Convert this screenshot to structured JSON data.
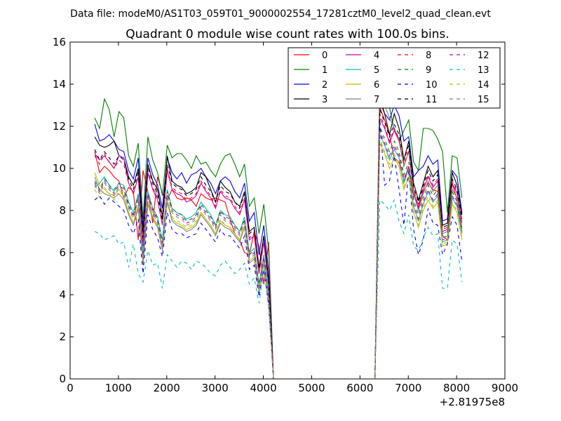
{
  "figure": {
    "suptitle": "Data file: modeM0/AS1T03_059T01_9000002554_17281cztM0_level2_quad_clean.evt"
  },
  "chart_data": {
    "type": "line",
    "title": "Quadrant 0 module wise count rates with 100.0s bins.",
    "xlabel": "",
    "ylabel": "",
    "x_offset_label": "+2.81975e8",
    "xlim": [
      0,
      9000
    ],
    "ylim": [
      0,
      16
    ],
    "xticks": [
      0,
      1000,
      2000,
      3000,
      4000,
      5000,
      6000,
      7000,
      8000,
      9000
    ],
    "yticks": [
      0,
      2,
      4,
      6,
      8,
      10,
      12,
      14,
      16
    ],
    "grid": false,
    "legend_position": "upper-right",
    "legend_columns": 4,
    "x_segments": [
      {
        "start": 510,
        "end": 4210,
        "step": 100
      },
      {
        "start": 4210,
        "end": 6310,
        "step": 100
      },
      {
        "start": 6410,
        "end": 8110,
        "step": 100
      }
    ],
    "series": [
      {
        "name": "0",
        "color": "#ff0000",
        "dash": "solid",
        "base": 8.6,
        "pre": [
          10.8,
          9.8,
          10.1,
          9.9,
          9.6,
          9.4,
          8.6,
          9.1,
          8.9,
          6.6,
          9.9,
          8.9,
          7.4,
          9.6,
          8.8,
          8.5,
          9.0,
          8.6,
          8.5,
          8.6,
          8.5,
          8.2,
          8.8,
          8.6,
          8.5,
          8.6,
          8.5,
          8.4,
          7.6,
          6.9,
          6.6,
          6.0,
          5.9,
          7.0,
          6.3,
          4.5,
          6.5
        ],
        "post": [
          12.9,
          12.3,
          11.6,
          10.5,
          10.3,
          9.4,
          10.1,
          8.7,
          8.3,
          8.9,
          9.3,
          9.0,
          8.9,
          6.8,
          6.6,
          9.3,
          8.5,
          7.6
        ]
      },
      {
        "name": "1",
        "color": "#008000",
        "dash": "solid",
        "base": 10.5,
        "pre": [
          12.4,
          11.9,
          13.3,
          12.8,
          11.5,
          12.7,
          12.4,
          10.6,
          10.1,
          11.2,
          7.6,
          11.5,
          10.4,
          9.8,
          8.7,
          11.1,
          10.5,
          10.7,
          10.7,
          10.4,
          10.0,
          10.6,
          10.2,
          10.3,
          9.9,
          9.6,
          10.2,
          10.6,
          10.7,
          10.2,
          9.6,
          10.2,
          8.2,
          8.6,
          6.9,
          8.3,
          6.1
        ],
        "post": [
          14.2,
          13.5,
          12.9,
          11.8,
          11.3,
          11.8,
          12.3,
          10.3,
          9.9,
          11.9,
          11.9,
          11.8,
          11.4,
          10.8,
          7.9,
          10.6,
          10.5,
          8.6
        ]
      },
      {
        "name": "2",
        "color": "#0000ff",
        "dash": "solid",
        "base": 9.6,
        "pre": [
          12.1,
          11.3,
          11.4,
          11.6,
          11.3,
          10.9,
          10.8,
          9.9,
          9.5,
          10.5,
          7.2,
          10.5,
          9.7,
          9.2,
          8.1,
          10.5,
          9.8,
          9.5,
          9.8,
          9.3,
          9.7,
          9.8,
          10.0,
          9.6,
          9.3,
          8.8,
          9.4,
          9.6,
          9.4,
          8.9,
          8.6,
          9.3,
          7.5,
          7.9,
          5.9,
          7.3,
          5.1
        ],
        "post": [
          13.4,
          12.6,
          12.3,
          13.0,
          12.5,
          11.3,
          11.5,
          9.6,
          9.9,
          10.1,
          10.6,
          10.2,
          10.4,
          7.5,
          7.6,
          9.9,
          9.6,
          7.9
        ]
      },
      {
        "name": "3",
        "color": "#000000",
        "dash": "solid",
        "base": 9.5,
        "pre": [
          11.5,
          11.1,
          11.0,
          11.1,
          11.3,
          10.6,
          10.5,
          9.6,
          9.2,
          10.0,
          7.0,
          10.2,
          9.4,
          9.0,
          7.7,
          10.6,
          9.4,
          9.2,
          9.1,
          8.8,
          8.9,
          9.1,
          9.8,
          9.6,
          9.0,
          8.4,
          9.4,
          9.1,
          8.9,
          8.4,
          8.2,
          8.9,
          7.0,
          7.2,
          5.3,
          6.8,
          4.7
        ],
        "post": [
          13.2,
          12.6,
          11.6,
          12.6,
          11.9,
          10.4,
          11.3,
          9.3,
          8.5,
          9.3,
          10.1,
          9.6,
          9.9,
          7.3,
          7.4,
          9.8,
          9.2,
          7.8
        ]
      },
      {
        "name": "4",
        "color": "#bf00bf",
        "dash": "solid",
        "base": 9.1,
        "pre": [
          10.7,
          10.4,
          10.6,
          10.3,
          10.0,
          10.6,
          10.5,
          9.3,
          8.8,
          9.6,
          6.3,
          9.8,
          9.0,
          8.5,
          7.3,
          9.9,
          9.0,
          8.8,
          8.7,
          8.4,
          8.5,
          8.7,
          9.3,
          8.9,
          8.6,
          8.1,
          8.9,
          8.6,
          8.5,
          8.1,
          7.8,
          8.5,
          6.6,
          6.8,
          5.0,
          6.5,
          4.4
        ],
        "post": [
          12.4,
          11.9,
          11.2,
          11.8,
          11.3,
          10.1,
          10.8,
          8.9,
          8.1,
          9.0,
          9.6,
          9.1,
          9.4,
          7.0,
          7.1,
          9.3,
          8.8,
          7.4
        ]
      },
      {
        "name": "5",
        "color": "#00bfbf",
        "dash": "solid",
        "base": 8.2,
        "pre": [
          9.1,
          9.3,
          9.6,
          9.2,
          8.9,
          9.3,
          9.2,
          8.4,
          7.9,
          8.8,
          5.9,
          8.9,
          8.1,
          7.7,
          6.6,
          9.0,
          8.1,
          7.9,
          7.8,
          7.6,
          7.7,
          7.9,
          8.4,
          8.1,
          7.8,
          7.3,
          8.0,
          7.8,
          7.7,
          7.3,
          7.0,
          7.7,
          6.0,
          6.2,
          4.5,
          5.9,
          4.0
        ],
        "post": [
          11.6,
          11.1,
          10.4,
          10.9,
          10.5,
          9.3,
          10.0,
          8.2,
          7.5,
          8.3,
          8.9,
          8.4,
          8.7,
          6.5,
          6.6,
          8.6,
          8.2,
          6.9
        ]
      },
      {
        "name": "6",
        "color": "#bfbf00",
        "dash": "solid",
        "base": 7.8,
        "pre": [
          9.8,
          9.2,
          9.0,
          8.8,
          8.7,
          9.0,
          8.7,
          7.9,
          7.4,
          8.2,
          5.5,
          8.4,
          7.7,
          7.3,
          6.2,
          8.5,
          7.6,
          7.4,
          7.3,
          7.1,
          7.2,
          7.4,
          7.9,
          7.6,
          7.3,
          6.9,
          7.5,
          7.3,
          7.2,
          6.9,
          6.6,
          7.3,
          5.6,
          5.8,
          4.2,
          5.6,
          3.8
        ],
        "post": [
          11.2,
          10.7,
          10.0,
          10.5,
          10.1,
          9.0,
          9.6,
          7.9,
          7.2,
          8.0,
          8.5,
          8.1,
          8.4,
          6.3,
          6.4,
          8.3,
          7.9,
          6.6
        ]
      },
      {
        "name": "7",
        "color": "#808080",
        "dash": "solid",
        "base": 8.0,
        "pre": [
          9.6,
          9.0,
          8.8,
          8.7,
          8.6,
          8.8,
          8.5,
          7.8,
          7.3,
          8.1,
          5.4,
          8.3,
          7.6,
          7.2,
          6.1,
          8.4,
          7.5,
          7.3,
          7.2,
          7.0,
          7.1,
          7.3,
          7.8,
          7.5,
          7.2,
          6.8,
          7.4,
          7.2,
          7.1,
          6.8,
          6.5,
          7.2,
          5.5,
          5.7,
          4.1,
          5.5,
          3.7
        ],
        "post": [
          13.7,
          13.0,
          12.4,
          11.9,
          11.4,
          10.1,
          10.8,
          8.8,
          8.0,
          8.8,
          9.4,
          8.9,
          9.2,
          6.9,
          7.0,
          9.0,
          8.6,
          7.2
        ]
      },
      {
        "name": "8",
        "color": "#ff0000",
        "dash": "dashed",
        "base": 9.2,
        "pre": [
          10.6,
          10.2,
          10.7,
          10.3,
          10.0,
          10.4,
          10.2,
          9.3,
          8.8,
          9.7,
          6.6,
          9.9,
          9.1,
          8.6,
          7.4,
          10.0,
          9.1,
          8.9,
          8.8,
          8.5,
          8.6,
          8.8,
          9.4,
          9.0,
          8.7,
          8.2,
          9.0,
          8.7,
          8.6,
          8.2,
          7.9,
          8.6,
          6.7,
          6.9,
          5.1,
          6.6,
          4.5
        ],
        "post": [
          12.6,
          12.0,
          11.3,
          11.9,
          11.4,
          10.2,
          10.9,
          9.0,
          8.2,
          9.1,
          9.7,
          9.2,
          9.5,
          7.1,
          7.2,
          9.4,
          8.9,
          7.5
        ]
      },
      {
        "name": "9",
        "color": "#008000",
        "dash": "dashed",
        "base": 8.6,
        "pre": [
          9.4,
          9.0,
          9.5,
          9.2,
          9.0,
          9.3,
          9.1,
          8.3,
          7.8,
          8.7,
          5.8,
          8.8,
          8.1,
          7.6,
          6.5,
          8.9,
          8.1,
          7.9,
          7.8,
          7.5,
          7.6,
          7.8,
          8.3,
          8.0,
          7.7,
          7.3,
          8.0,
          7.7,
          7.6,
          7.3,
          7.0,
          7.6,
          5.9,
          6.1,
          4.5,
          5.8,
          4.0
        ],
        "post": [
          12.0,
          11.4,
          10.8,
          11.3,
          10.8,
          9.7,
          10.3,
          8.5,
          7.8,
          8.6,
          9.2,
          8.7,
          9.0,
          6.7,
          6.8,
          8.9,
          8.4,
          7.1
        ]
      },
      {
        "name": "10",
        "color": "#0000ff",
        "dash": "dashed",
        "base": 7.9,
        "pre": [
          8.5,
          8.7,
          8.3,
          8.6,
          8.4,
          8.2,
          8.0,
          7.3,
          6.9,
          7.6,
          5.0,
          7.8,
          7.1,
          6.7,
          5.8,
          7.9,
          7.1,
          6.9,
          6.9,
          6.7,
          6.8,
          6.9,
          7.4,
          7.1,
          6.8,
          6.5,
          7.1,
          6.8,
          6.8,
          6.5,
          6.2,
          6.8,
          5.2,
          5.4,
          3.9,
          5.2,
          3.5
        ],
        "post": [
          12.3,
          9.2,
          9.4,
          10.6,
          9.0,
          7.3,
          9.9,
          7.1,
          5.9,
          6.6,
          8.1,
          7.4,
          7.3,
          5.9,
          6.4,
          7.7,
          7.3,
          5.6
        ]
      },
      {
        "name": "11",
        "color": "#000000",
        "dash": "dashed",
        "base": 9.0,
        "pre": [
          10.9,
          10.4,
          10.8,
          10.5,
          10.2,
          10.6,
          10.4,
          9.5,
          9.0,
          9.9,
          6.7,
          10.1,
          9.3,
          8.8,
          7.5,
          10.2,
          9.3,
          9.1,
          9.0,
          8.7,
          8.8,
          9.0,
          9.6,
          9.2,
          8.9,
          8.4,
          9.2,
          8.9,
          8.8,
          8.4,
          8.1,
          8.8,
          6.9,
          7.1,
          5.2,
          6.8,
          4.6
        ],
        "post": [
          12.8,
          12.2,
          11.5,
          12.1,
          11.6,
          10.4,
          11.1,
          9.1,
          8.4,
          9.2,
          9.9,
          9.4,
          9.7,
          7.2,
          7.3,
          9.5,
          9.0,
          7.6
        ]
      },
      {
        "name": "12",
        "color": "#bf00bf",
        "dash": "dashed",
        "base": 8.4,
        "pre": [
          9.3,
          8.9,
          9.4,
          9.1,
          8.8,
          9.2,
          9.0,
          8.2,
          7.7,
          8.6,
          5.7,
          8.7,
          8.0,
          7.5,
          6.4,
          8.8,
          8.0,
          7.8,
          7.7,
          7.4,
          7.5,
          7.7,
          8.2,
          7.9,
          7.6,
          7.2,
          7.9,
          7.6,
          7.5,
          7.2,
          6.9,
          7.5,
          5.8,
          6.0,
          4.4,
          5.7,
          3.9
        ],
        "post": [
          11.8,
          11.2,
          10.6,
          11.1,
          10.6,
          9.5,
          10.1,
          8.3,
          7.6,
          8.4,
          9.0,
          8.5,
          8.8,
          6.6,
          6.7,
          8.7,
          8.3,
          7.0
        ]
      },
      {
        "name": "13",
        "color": "#00bfbf",
        "dash": "dashed",
        "base": 6.3,
        "pre": [
          7.0,
          6.9,
          6.6,
          6.7,
          6.8,
          6.4,
          6.5,
          5.3,
          6.4,
          5.0,
          4.6,
          6.1,
          5.4,
          5.5,
          4.3,
          5.9,
          5.6,
          5.3,
          5.6,
          5.5,
          5.2,
          5.6,
          5.5,
          5.3,
          5.0,
          4.9,
          5.4,
          5.6,
          5.3,
          5.0,
          5.2,
          5.5,
          4.5,
          4.8,
          3.6,
          5.2,
          3.4
        ],
        "post": [
          8.5,
          8.3,
          8.0,
          8.5,
          7.5,
          6.9,
          7.8,
          6.3,
          6.1,
          6.7,
          7.2,
          6.8,
          6.9,
          4.3,
          4.3,
          6.6,
          6.4,
          4.6
        ]
      },
      {
        "name": "14",
        "color": "#bfbf00",
        "dash": "dashed",
        "base": 8.0,
        "pre": [
          9.0,
          8.6,
          9.1,
          8.8,
          8.5,
          8.9,
          8.7,
          7.9,
          7.4,
          8.3,
          5.5,
          8.4,
          7.7,
          7.3,
          6.2,
          8.5,
          7.7,
          7.5,
          7.4,
          7.2,
          7.3,
          7.5,
          7.9,
          7.6,
          7.3,
          6.9,
          7.6,
          7.3,
          7.2,
          6.9,
          6.6,
          7.2,
          5.6,
          5.8,
          4.2,
          5.5,
          3.8
        ],
        "post": [
          11.4,
          10.8,
          10.2,
          10.7,
          10.2,
          9.1,
          9.7,
          8.0,
          7.3,
          8.1,
          8.7,
          8.2,
          8.5,
          6.4,
          6.5,
          8.4,
          8.0,
          6.7
        ]
      },
      {
        "name": "15",
        "color": "#808080",
        "dash": "dashed",
        "base": 8.3,
        "pre": [
          9.2,
          8.8,
          9.3,
          9.0,
          8.7,
          9.1,
          8.9,
          8.1,
          7.6,
          8.5,
          5.6,
          8.6,
          7.9,
          7.4,
          6.3,
          8.7,
          7.9,
          7.7,
          7.6,
          7.3,
          7.4,
          7.6,
          8.1,
          7.8,
          7.5,
          7.1,
          7.8,
          7.5,
          7.4,
          7.1,
          6.8,
          7.4,
          5.7,
          5.9,
          4.3,
          5.6,
          3.9
        ],
        "post": [
          11.7,
          11.1,
          10.5,
          11.0,
          10.5,
          9.4,
          10.0,
          8.2,
          7.5,
          8.3,
          8.9,
          8.4,
          8.7,
          6.5,
          6.6,
          8.6,
          8.2,
          6.9
        ]
      }
    ]
  }
}
